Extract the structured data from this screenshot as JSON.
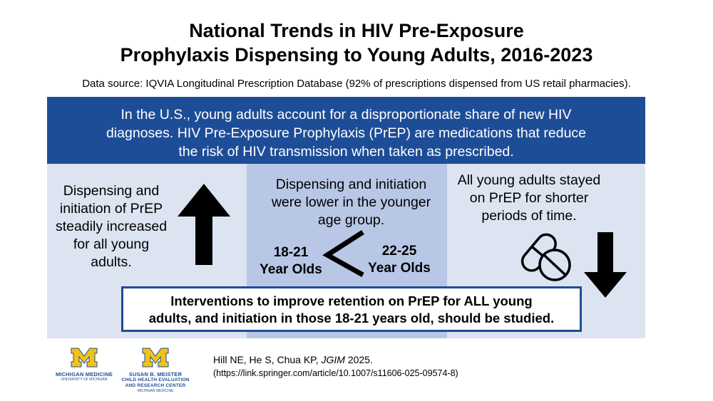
{
  "title": {
    "line1": "National Trends in HIV Pre-Exposure",
    "line2": "Prophylaxis Dispensing to Young Adults, 2016-2023"
  },
  "source": "Data source: IQVIA Longitudinal Prescription Database (92% of prescriptions dispensed from US retail pharmacies).",
  "banner": {
    "line1": "In the U.S., young adults account for a disproportionate share of new HIV",
    "line2": "diagnoses. HIV Pre-Exposure Prophylaxis (PrEP) are medications that reduce",
    "line3": "the risk of HIV transmission when taken as prescribed."
  },
  "finding1": {
    "lines": [
      "Dispensing and",
      "initiation of PrEP",
      "steadily increased",
      "for all young",
      "adults."
    ],
    "icon": "up-arrow-icon"
  },
  "finding2": {
    "lines": [
      "Dispensing and initiation",
      "were lower in the younger",
      "age group."
    ],
    "younger_group": [
      "18-21",
      "Year Olds"
    ],
    "comparison_symbol": "<",
    "older_group": [
      "22-25",
      "Year Olds"
    ]
  },
  "finding3": {
    "lines": [
      "All young adults stayed",
      "on PrEP for shorter",
      "periods of time."
    ],
    "icons": [
      "pills-icon",
      "down-arrow-icon"
    ]
  },
  "conclusion": {
    "line1": "Interventions to improve retention on PrEP for ALL young",
    "line2": "adults, and initiation in those 18-21 years old, should be studied."
  },
  "logos": {
    "michigan_medicine": {
      "mark": "M",
      "name": "MICHIGAN MEDICINE",
      "sub": "UNIVERSITY OF MICHIGAN"
    },
    "chear": {
      "mark": "M",
      "lines": [
        "SUSAN B. MEISTER",
        "CHILD HEALTH EVALUATION",
        "AND RESEARCH CENTER"
      ],
      "sub": "MICHIGAN MEDICINE"
    }
  },
  "citation": {
    "authors": "Hill NE, He S, Chua KP, ",
    "journal": "JGIM",
    "year": " 2025.",
    "url": "(https://link.springer.com/article/10.1007/s11606-025-09574-8)"
  },
  "colors": {
    "banner": "#1e4d97",
    "panel_light": "#dce3f1",
    "panel_mid": "#b8c7e6",
    "logo_maize": "#f2c314",
    "logo_blue": "#1e4d97"
  }
}
